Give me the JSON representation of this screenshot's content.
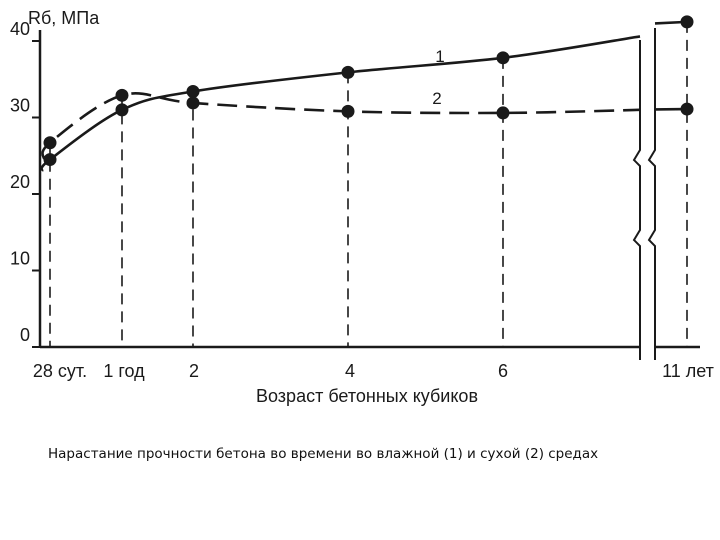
{
  "chart_data": {
    "type": "line",
    "ylabel": "Rб, МПа",
    "xlabel": "Возраст бетонных кубиков",
    "ylim": [
      0,
      40
    ],
    "yticks": [
      "0",
      "10",
      "20",
      "30",
      "40"
    ],
    "x": [
      "28 сут.",
      "1 год",
      "2",
      "4",
      "6",
      "11 лет"
    ],
    "axis_break": "между 6 и 11 лет",
    "series": [
      {
        "name": "1",
        "values": [
          24.5,
          31,
          33.4,
          35.9,
          37.8,
          42.5
        ]
      },
      {
        "name": "2",
        "values": [
          26.7,
          32.9,
          31.9,
          30.8,
          30.6,
          31.1
        ]
      }
    ]
  },
  "caption": "Нарастание прочности бетона во времени во влажной (1) и сухой (2) средах"
}
